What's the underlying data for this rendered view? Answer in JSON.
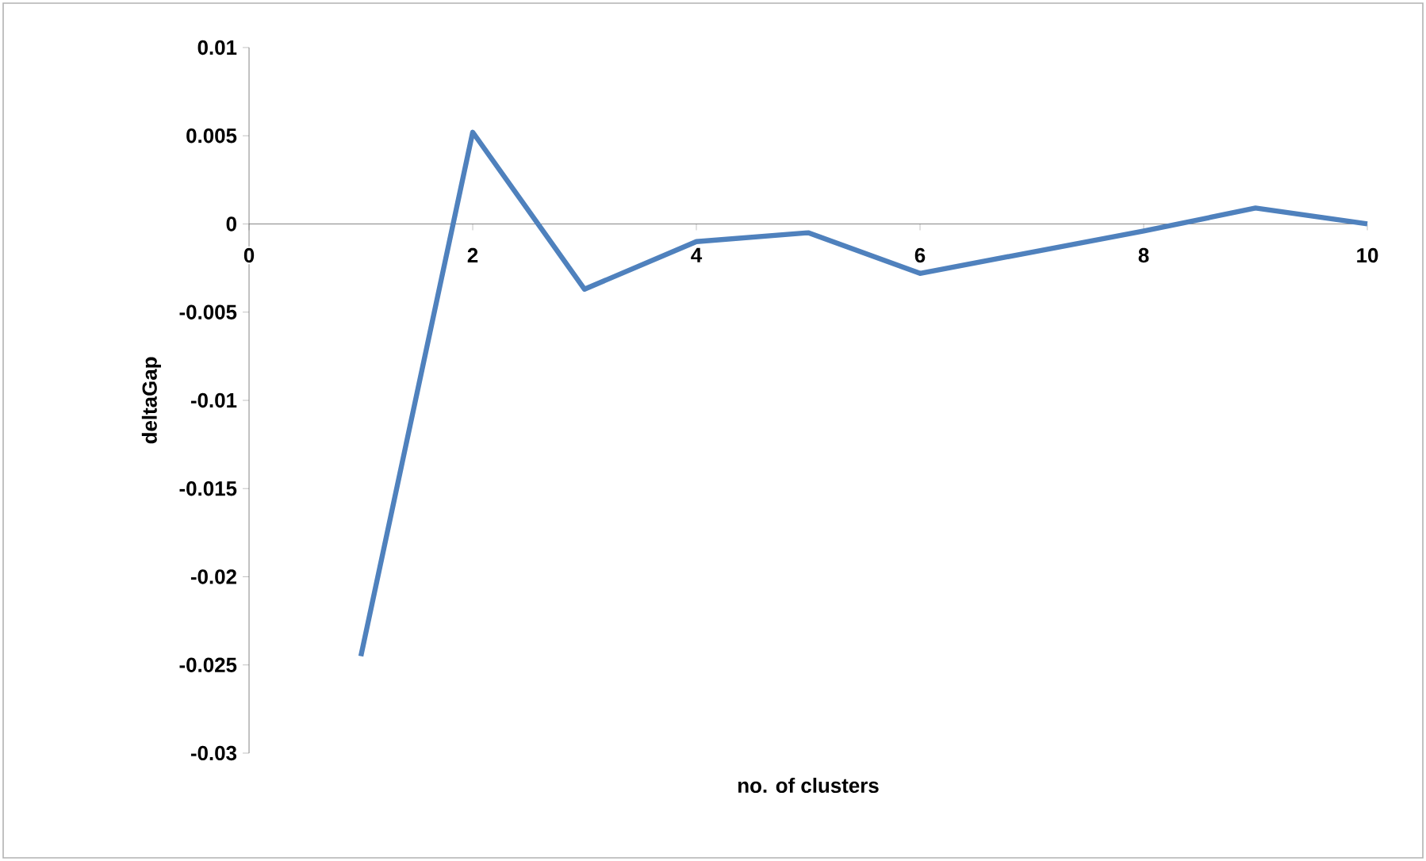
{
  "chart_data": {
    "type": "line",
    "xlabel": "no. of clusters",
    "ylabel": "deltaGap",
    "x": [
      1,
      2,
      3,
      4,
      5,
      6,
      7,
      8,
      9,
      10
    ],
    "series": [
      {
        "color": "#4f81bd",
        "values": [
          -0.0245,
          0.0052,
          -0.0037,
          -0.001,
          -0.0005,
          -0.0028,
          -0.0016,
          -0.0004,
          0.0009,
          0.0
        ]
      }
    ],
    "xlim": [
      0,
      10
    ],
    "xticks": [
      0,
      2,
      4,
      6,
      8,
      10
    ],
    "ylim": [
      -0.03,
      0.01
    ],
    "yticks": [
      -0.03,
      -0.025,
      -0.02,
      -0.015,
      -0.01,
      -0.005,
      0,
      0.005,
      0.01
    ],
    "grid": false,
    "marker": "none",
    "line_style": "solid"
  }
}
